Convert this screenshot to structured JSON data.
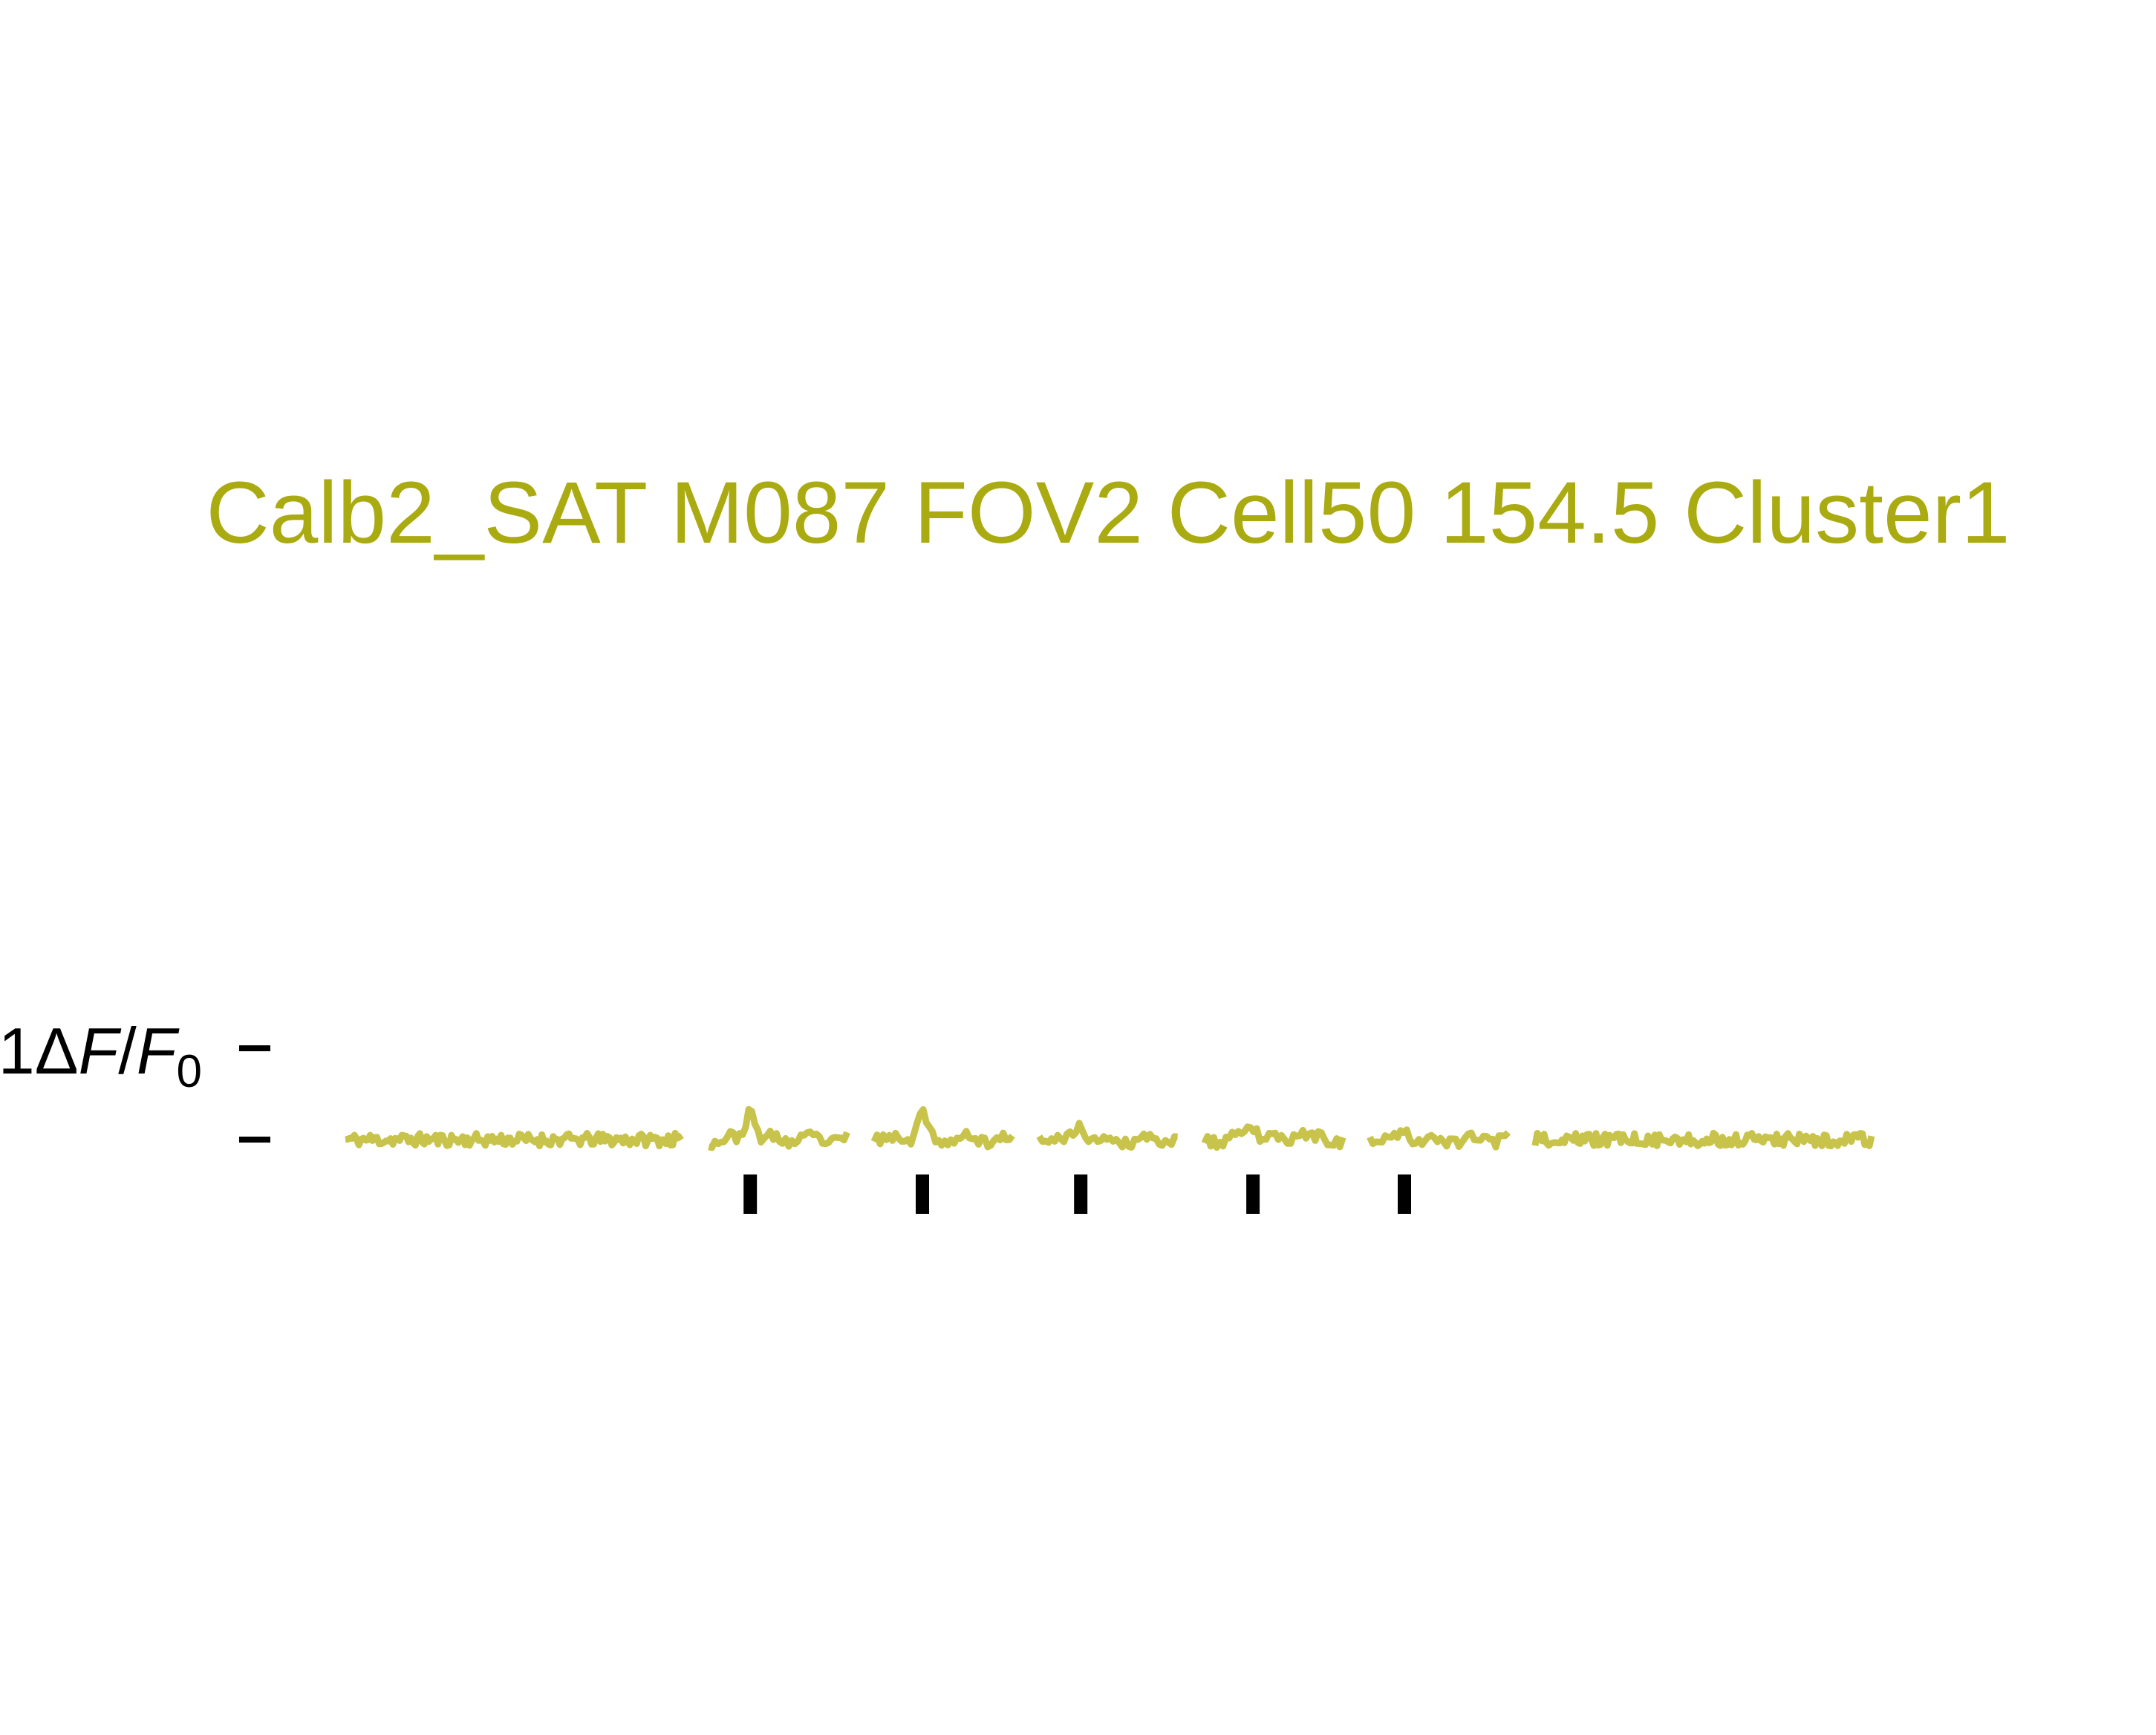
{
  "chart_data": {
    "type": "line",
    "title": "Calb2_SAT M087 FOV2 Cell50 154.5 Cluster1",
    "title_color": "#AAAA11",
    "trace_color": "#C8C34A",
    "scale_bar_label": "1ΔF/F₀",
    "scale_bar_label_parts": {
      "prefix": "1Δ",
      "F": "F",
      "slash": "/",
      "F0": "F",
      "sub": "0"
    },
    "scale_bar": {
      "value": 1,
      "unit": "ΔF/F₀"
    },
    "axes_visible": false,
    "grid": false,
    "legend": "none",
    "series": [
      {
        "kind": "baseline",
        "points": 150,
        "seed": 11,
        "noise": 0.07,
        "events": []
      },
      {
        "kind": "event",
        "points": 46,
        "seed": 23,
        "noise": 0.06,
        "events": [
          {
            "at": 0.3,
            "amplitude": 0.32
          }
        ]
      },
      {
        "kind": "event",
        "points": 46,
        "seed": 37,
        "noise": 0.06,
        "events": [
          {
            "at": 0.35,
            "amplitude": 0.25
          }
        ]
      },
      {
        "kind": "event",
        "points": 46,
        "seed": 41,
        "noise": 0.06,
        "events": [
          {
            "at": 0.3,
            "amplitude": 0.14
          }
        ]
      },
      {
        "kind": "event",
        "points": 46,
        "seed": 53,
        "noise": 0.06,
        "events": [
          {
            "at": 0.35,
            "amplitude": 0.16
          },
          {
            "at": 0.68,
            "amplitude": 0.12
          }
        ]
      },
      {
        "kind": "event",
        "points": 46,
        "seed": 67,
        "noise": 0.06,
        "events": [
          {
            "at": 0.25,
            "amplitude": 0.1
          }
        ]
      },
      {
        "kind": "baseline",
        "points": 150,
        "seed": 79,
        "noise": 0.07,
        "events": []
      }
    ],
    "stimulus_markers": [
      1,
      2,
      3,
      4,
      5
    ]
  }
}
